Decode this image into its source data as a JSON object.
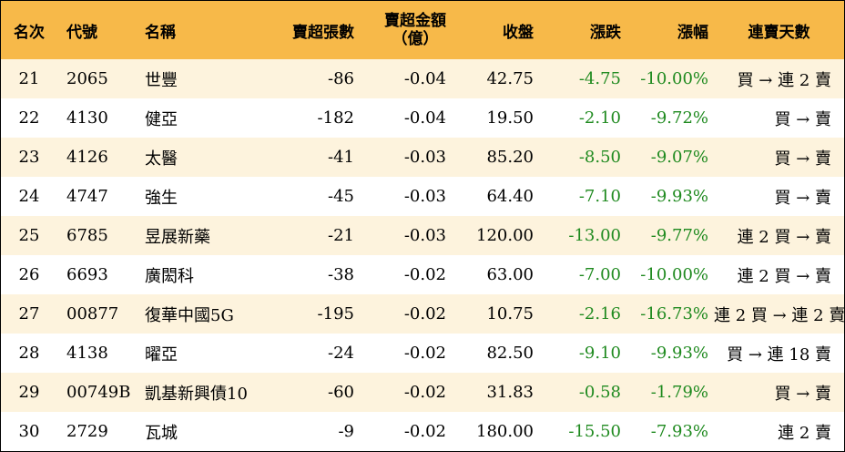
{
  "headers": {
    "rank": "名次",
    "code": "代號",
    "name": "名稱",
    "net_sell_lots": "賣超張數",
    "net_sell_amount_line1": "賣超金額",
    "net_sell_amount_line2": "（億）",
    "close": "收盤",
    "change": "漲跌",
    "pct": "漲幅",
    "trend": "連賣天數"
  },
  "rows": [
    {
      "rank": "21",
      "code": "2065",
      "name": "世豐",
      "lots": "-86",
      "amount": "-0.04",
      "close": "42.75",
      "change": "-4.75",
      "pct": "-10.00%",
      "trend": "買 → 連 2 賣"
    },
    {
      "rank": "22",
      "code": "4130",
      "name": "健亞",
      "lots": "-182",
      "amount": "-0.04",
      "close": "19.50",
      "change": "-2.10",
      "pct": "-9.72%",
      "trend": "買 → 賣"
    },
    {
      "rank": "23",
      "code": "4126",
      "name": "太醫",
      "lots": "-41",
      "amount": "-0.03",
      "close": "85.20",
      "change": "-8.50",
      "pct": "-9.07%",
      "trend": "買 → 賣"
    },
    {
      "rank": "24",
      "code": "4747",
      "name": "強生",
      "lots": "-45",
      "amount": "-0.03",
      "close": "64.40",
      "change": "-7.10",
      "pct": "-9.93%",
      "trend": "買 → 賣"
    },
    {
      "rank": "25",
      "code": "6785",
      "name": "昱展新藥",
      "lots": "-21",
      "amount": "-0.03",
      "close": "120.00",
      "change": "-13.00",
      "pct": "-9.77%",
      "trend": "連 2 買 → 賣"
    },
    {
      "rank": "26",
      "code": "6693",
      "name": "廣閎科",
      "lots": "-38",
      "amount": "-0.02",
      "close": "63.00",
      "change": "-7.00",
      "pct": "-10.00%",
      "trend": "連 2 買 → 賣"
    },
    {
      "rank": "27",
      "code": "00877",
      "name": "復華中國5G",
      "lots": "-195",
      "amount": "-0.02",
      "close": "10.75",
      "change": "-2.16",
      "pct": "-16.73%",
      "trend": "連 2 買 → 連 2 賣"
    },
    {
      "rank": "28",
      "code": "4138",
      "name": "曜亞",
      "lots": "-24",
      "amount": "-0.02",
      "close": "82.50",
      "change": "-9.10",
      "pct": "-9.93%",
      "trend": "買 → 連 18 賣"
    },
    {
      "rank": "29",
      "code": "00749B",
      "name": "凱基新興債10",
      "lots": "-60",
      "amount": "-0.02",
      "close": "31.83",
      "change": "-0.58",
      "pct": "-1.79%",
      "trend": "買 → 賣"
    },
    {
      "rank": "30",
      "code": "2729",
      "name": "瓦城",
      "lots": "-9",
      "amount": "-0.02",
      "close": "180.00",
      "change": "-15.50",
      "pct": "-7.93%",
      "trend": "連 2 賣"
    }
  ],
  "colors": {
    "header_bg": "#f7b949",
    "stripe_bg": "#fdf3dd",
    "negative": "#1f8a1f"
  }
}
